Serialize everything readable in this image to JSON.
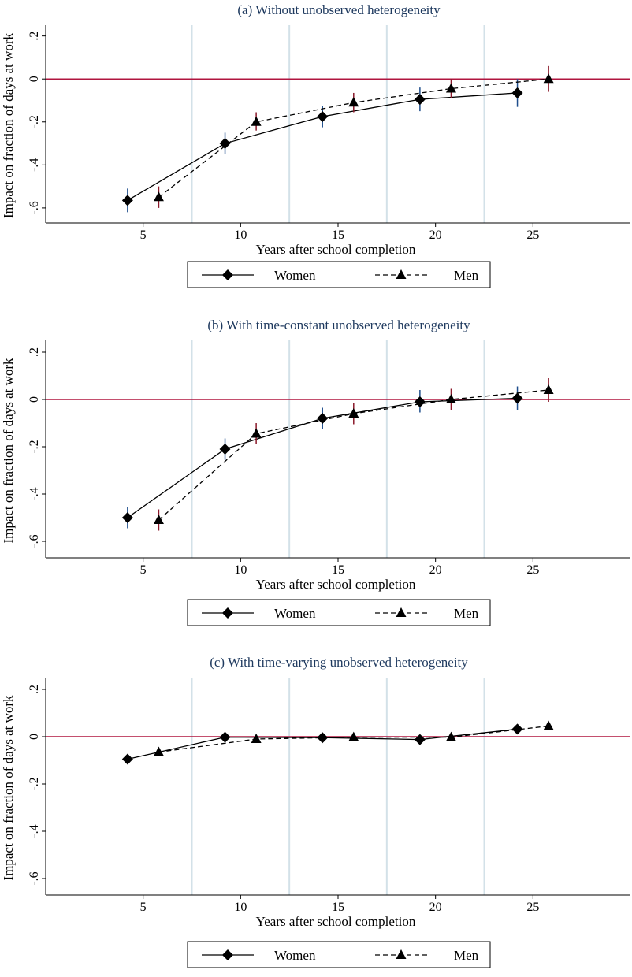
{
  "colors": {
    "title": "#1f3a5f",
    "reference_line": "#b0153f",
    "vertical_lines": "#d3e1e8",
    "women_error": "#1f4e8c",
    "men_error": "#8b1a2b",
    "series": "#000000"
  },
  "chart_data": [
    {
      "type": "line",
      "title": "(a) Without unobserved heterogeneity",
      "xlabel": "Years after school completion",
      "ylabel": "Impact on fraction of days at work",
      "xlim": [
        0,
        30
      ],
      "ylim": [
        -0.67,
        0.25
      ],
      "xticks": [
        5,
        10,
        15,
        20,
        25
      ],
      "xtick_labels": [
        "5",
        "10",
        "15",
        "20",
        "25"
      ],
      "yticks": [
        0.2,
        0,
        -0.2,
        -0.4,
        -0.6
      ],
      "ytick_labels": [
        ".2",
        "0",
        "-.2",
        "-.4",
        "-.6"
      ],
      "vlines": [
        7.5,
        12.5,
        17.5,
        22.5
      ],
      "hline": 0,
      "legend": "bottom",
      "series": [
        {
          "name": "Women",
          "marker": "diamond",
          "dash": "solid",
          "x": [
            4.2,
            9.2,
            14.2,
            19.2,
            24.2
          ],
          "y": [
            -0.565,
            -0.3,
            -0.175,
            -0.095,
            -0.065
          ],
          "ci": [
            [
              -0.62,
              -0.51
            ],
            [
              -0.35,
              -0.25
            ],
            [
              -0.225,
              -0.125
            ],
            [
              -0.15,
              -0.04
            ],
            [
              -0.13,
              0.0
            ]
          ]
        },
        {
          "name": "Men",
          "marker": "triangle",
          "dash": "dashed",
          "x": [
            5.8,
            10.8,
            15.8,
            20.8,
            25.8
          ],
          "y": [
            -0.55,
            -0.2,
            -0.11,
            -0.045,
            0.0
          ],
          "ci": [
            [
              -0.6,
              -0.5
            ],
            [
              -0.24,
              -0.155
            ],
            [
              -0.155,
              -0.065
            ],
            [
              -0.09,
              0.0
            ],
            [
              -0.06,
              0.06
            ]
          ]
        }
      ]
    },
    {
      "type": "line",
      "title": "(b) With time-constant unobserved heterogeneity",
      "xlabel": "Years after school completion",
      "ylabel": "Impact on fraction of days at work",
      "xlim": [
        0,
        30
      ],
      "ylim": [
        -0.67,
        0.25
      ],
      "xticks": [
        5,
        10,
        15,
        20,
        25
      ],
      "xtick_labels": [
        "5",
        "10",
        "15",
        "20",
        "25"
      ],
      "yticks": [
        0.2,
        0,
        -0.2,
        -0.4,
        -0.6
      ],
      "ytick_labels": [
        ".2",
        "0",
        "-.2",
        "-.4",
        "-.6"
      ],
      "vlines": [
        7.5,
        12.5,
        17.5,
        22.5
      ],
      "hline": 0,
      "legend": "bottom",
      "series": [
        {
          "name": "Women",
          "marker": "diamond",
          "dash": "solid",
          "x": [
            4.2,
            9.2,
            14.2,
            19.2,
            24.2
          ],
          "y": [
            -0.5,
            -0.21,
            -0.08,
            -0.01,
            0.005
          ],
          "ci": [
            [
              -0.545,
              -0.455
            ],
            [
              -0.255,
              -0.165
            ],
            [
              -0.125,
              -0.035
            ],
            [
              -0.055,
              0.04
            ],
            [
              -0.045,
              0.055
            ]
          ]
        },
        {
          "name": "Men",
          "marker": "triangle",
          "dash": "dashed",
          "x": [
            5.8,
            10.8,
            15.8,
            20.8,
            25.8
          ],
          "y": [
            -0.51,
            -0.145,
            -0.06,
            0.0,
            0.04
          ],
          "ci": [
            [
              -0.555,
              -0.465
            ],
            [
              -0.19,
              -0.1
            ],
            [
              -0.105,
              -0.015
            ],
            [
              -0.045,
              0.045
            ],
            [
              -0.01,
              0.09
            ]
          ]
        }
      ]
    },
    {
      "type": "line",
      "title": "(c) With time-varying unobserved heterogeneity",
      "xlabel": "Years after school completion",
      "ylabel": "Impact on fraction of days at work",
      "xlim": [
        0,
        30
      ],
      "ylim": [
        -0.67,
        0.25
      ],
      "xticks": [
        5,
        10,
        15,
        20,
        25
      ],
      "xtick_labels": [
        "5",
        "10",
        "15",
        "20",
        "25"
      ],
      "yticks": [
        0.2,
        0,
        -0.2,
        -0.4,
        -0.6
      ],
      "ytick_labels": [
        ".2",
        "0",
        "-.2",
        "-.4",
        "-.6"
      ],
      "vlines": [
        7.5,
        12.5,
        17.5,
        22.5
      ],
      "hline": 0,
      "legend": "bottom",
      "series": [
        {
          "name": "Women",
          "marker": "diamond",
          "dash": "solid",
          "x": [
            4.2,
            9.2,
            14.2,
            19.2,
            24.2
          ],
          "y": [
            -0.095,
            -0.002,
            -0.004,
            -0.012,
            0.032
          ],
          "ci": [
            [
              -0.105,
              -0.085
            ],
            [
              -0.015,
              0.012
            ],
            [
              -0.015,
              0.007
            ],
            [
              -0.025,
              0.001
            ],
            [
              0.02,
              0.044
            ]
          ]
        },
        {
          "name": "Men",
          "marker": "triangle",
          "dash": "dashed",
          "x": [
            5.8,
            10.8,
            15.8,
            20.8,
            25.8
          ],
          "y": [
            -0.065,
            -0.01,
            -0.002,
            -0.002,
            0.045
          ],
          "ci": [
            [
              -0.078,
              -0.052
            ],
            [
              -0.022,
              0.002
            ],
            [
              -0.014,
              0.01
            ],
            [
              -0.014,
              0.01
            ],
            [
              0.033,
              0.057
            ]
          ]
        }
      ]
    }
  ],
  "legend": {
    "women_label": "Women",
    "men_label": "Men"
  }
}
